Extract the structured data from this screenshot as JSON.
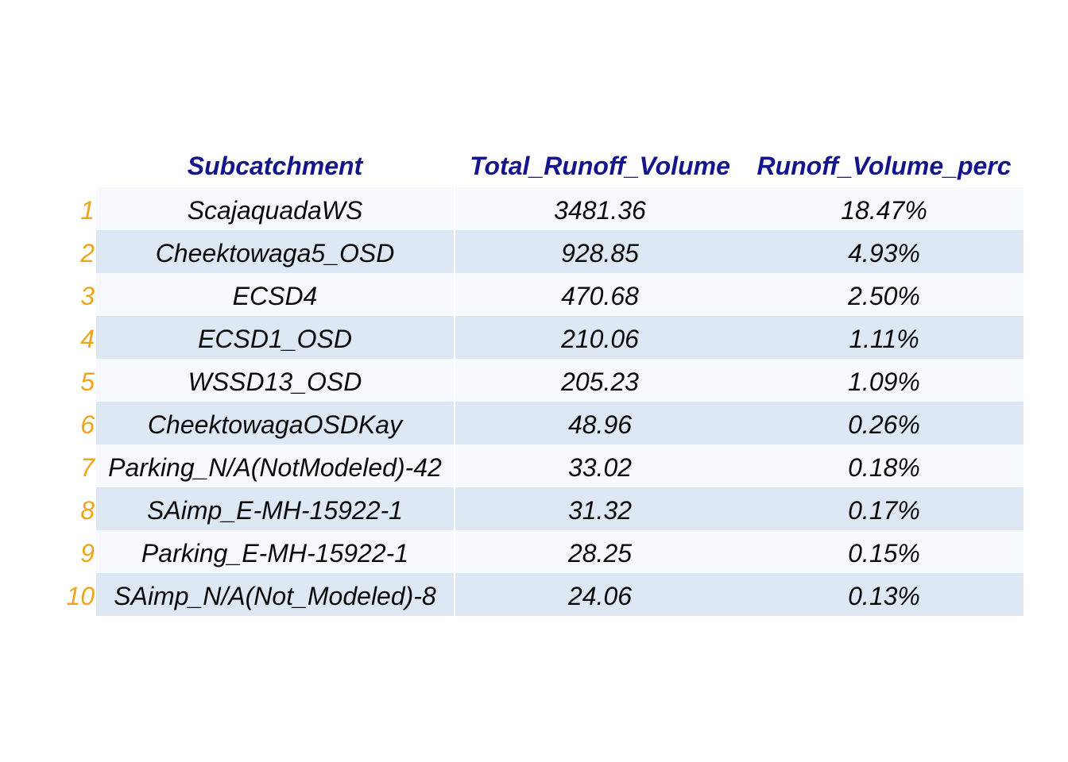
{
  "chart_data": {
    "type": "table",
    "columns": [
      "Subcatchment",
      "Total_Runoff_Volume",
      "Runoff_Volume_perc"
    ],
    "rows": [
      {
        "index": "1",
        "subcatchment": "ScajaquadaWS",
        "total_runoff_volume": "3481.36",
        "runoff_volume_perc": "18.47%"
      },
      {
        "index": "2",
        "subcatchment": "Cheektowaga5_OSD",
        "total_runoff_volume": "928.85",
        "runoff_volume_perc": "4.93%"
      },
      {
        "index": "3",
        "subcatchment": "ECSD4",
        "total_runoff_volume": "470.68",
        "runoff_volume_perc": "2.50%"
      },
      {
        "index": "4",
        "subcatchment": "ECSD1_OSD",
        "total_runoff_volume": "210.06",
        "runoff_volume_perc": "1.11%"
      },
      {
        "index": "5",
        "subcatchment": "WSSD13_OSD",
        "total_runoff_volume": "205.23",
        "runoff_volume_perc": "1.09%"
      },
      {
        "index": "6",
        "subcatchment": "CheektowagaOSDKay",
        "total_runoff_volume": "48.96",
        "runoff_volume_perc": "0.26%"
      },
      {
        "index": "7",
        "subcatchment": "Parking_N/A(NotModeled)-42",
        "total_runoff_volume": "33.02",
        "runoff_volume_perc": "0.18%"
      },
      {
        "index": "8",
        "subcatchment": "SAimp_E-MH-15922-1",
        "total_runoff_volume": "31.32",
        "runoff_volume_perc": "0.17%"
      },
      {
        "index": "9",
        "subcatchment": "Parking_E-MH-15922-1",
        "total_runoff_volume": "28.25",
        "runoff_volume_perc": "0.15%"
      },
      {
        "index": "10",
        "subcatchment": "SAimp_N/A(Not_Modeled)-8",
        "total_runoff_volume": "24.06",
        "runoff_volume_perc": "0.13%"
      }
    ],
    "colors": {
      "header_text": "#14148c",
      "index_text": "#f0a419",
      "row_odd_bg": "#f6fafe",
      "row_even_bg": "#dde8f4"
    }
  }
}
